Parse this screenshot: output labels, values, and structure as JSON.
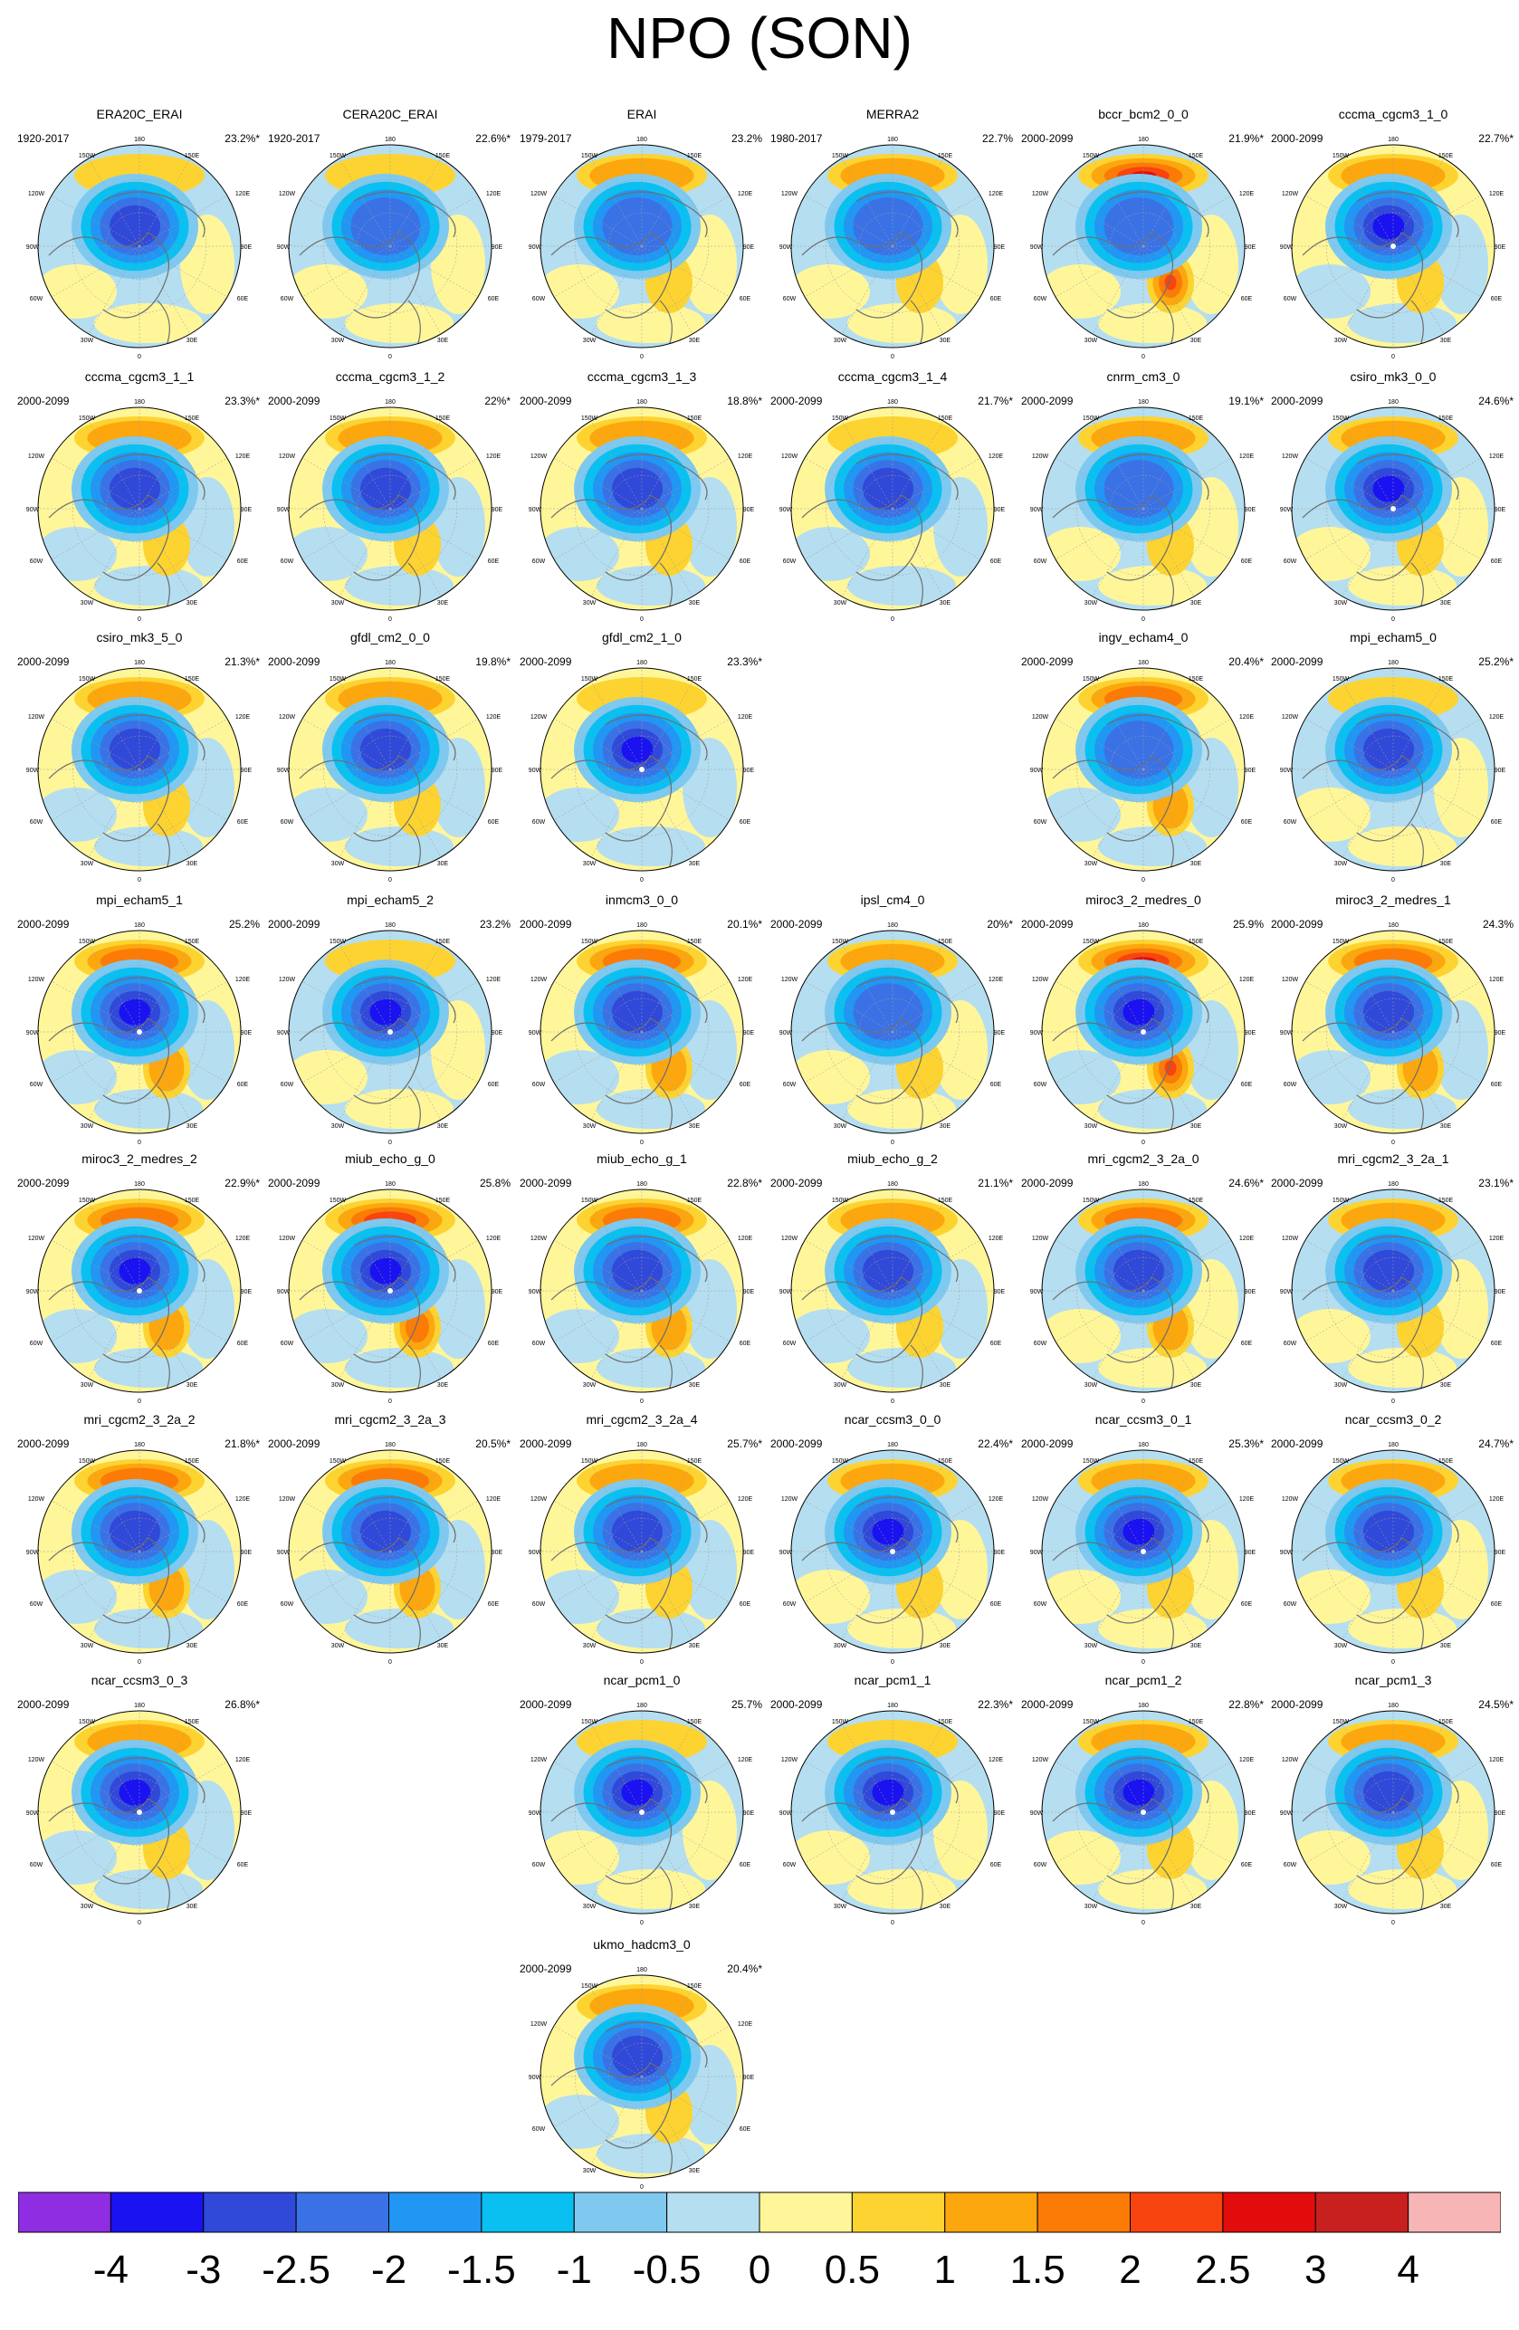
{
  "title": "NPO (SON)",
  "colorbar": {
    "colors": [
      "#8e2de2",
      "#1a12f0",
      "#3049d8",
      "#3a72e6",
      "#2196f3",
      "#0ac0f0",
      "#7fc9f0",
      "#b5def0",
      "#fff69a",
      "#fdd331",
      "#fca70e",
      "#fb7b06",
      "#f8440e",
      "#e30c0c",
      "#c8201e",
      "#f8b5b5"
    ],
    "labels": [
      "-4",
      "-3",
      "-2.5",
      "-2",
      "-1.5",
      "-1",
      "-0.5",
      "0",
      "0.5",
      "1",
      "1.5",
      "2",
      "2.5",
      "3",
      "4"
    ]
  },
  "map_labels": {
    "top": "180",
    "bottom": "0",
    "left_upper": "120W",
    "left_mid": "90W",
    "left_lower": "60W",
    "right_upper": "120E",
    "right_mid": "90E",
    "right_lower": "60E",
    "top_left": "150W",
    "top_right": "150E",
    "bottom_left": "30W",
    "bottom_right": "30E"
  },
  "panels": [
    {
      "title": "ERA20C_ERAI",
      "period": "1920-2017",
      "pct": "23.2%*",
      "low": -2.5,
      "high": 0.5,
      "bg": "lb"
    },
    {
      "title": "CERA20C_ERAI",
      "period": "1920-2017",
      "pct": "22.6%*",
      "low": -2,
      "high": 0.5,
      "bg": "lb"
    },
    {
      "title": "ERAI",
      "period": "1979-2017",
      "pct": "23.2%",
      "low": -2,
      "high": 1,
      "bg": "lb"
    },
    {
      "title": "MERRA2",
      "period": "1980-2017",
      "pct": "22.7%",
      "low": -2,
      "high": 1,
      "bg": "lb"
    },
    {
      "title": "bccr_bcm2_0_0",
      "period": "2000-2099",
      "pct": "21.9%*",
      "low": -2,
      "high": 2.5,
      "bg": "lb"
    },
    {
      "title": "cccma_cgcm3_1_0",
      "period": "2000-2099",
      "pct": "22.7%*",
      "low": -3,
      "high": 1,
      "bg": "ly"
    },
    {
      "title": "cccma_cgcm3_1_1",
      "period": "2000-2099",
      "pct": "23.3%*",
      "low": -2.5,
      "high": 1,
      "bg": "ly"
    },
    {
      "title": "cccma_cgcm3_1_2",
      "period": "2000-2099",
      "pct": "22%*",
      "low": -2.5,
      "high": 1,
      "bg": "ly"
    },
    {
      "title": "cccma_cgcm3_1_3",
      "period": "2000-2099",
      "pct": "18.8%*",
      "low": -2.5,
      "high": 1,
      "bg": "ly"
    },
    {
      "title": "cccma_cgcm3_1_4",
      "period": "2000-2099",
      "pct": "21.7%*",
      "low": -2.5,
      "high": 0.5,
      "bg": "ly"
    },
    {
      "title": "cnrm_cm3_0",
      "period": "2000-2099",
      "pct": "19.1%*",
      "low": -2,
      "high": 1,
      "bg": "lb"
    },
    {
      "title": "csiro_mk3_0_0",
      "period": "2000-2099",
      "pct": "24.6%*",
      "low": -3,
      "high": 1,
      "bg": "lb"
    },
    {
      "title": "csiro_mk3_5_0",
      "period": "2000-2099",
      "pct": "21.3%*",
      "low": -2.5,
      "high": 1,
      "bg": "ly"
    },
    {
      "title": "gfdl_cm2_0_0",
      "period": "2000-2099",
      "pct": "19.8%*",
      "low": -2.5,
      "high": 1,
      "bg": "ly"
    },
    {
      "title": "gfdl_cm2_1_0",
      "period": "2000-2099",
      "pct": "23.3%*",
      "low": -3,
      "high": 0.5,
      "bg": "ly"
    },
    {
      "title": "ingv_echam4_0",
      "period": "2000-2099",
      "pct": "20.4%*",
      "low": -2,
      "high": 1.5,
      "bg": "ly"
    },
    {
      "title": "mpi_echam5_0",
      "period": "2000-2099",
      "pct": "25.2%*",
      "low": -2.5,
      "high": 0.5,
      "bg": "lb"
    },
    {
      "title": "mpi_echam5_1",
      "period": "2000-2099",
      "pct": "25.2%",
      "low": -3,
      "high": 1.5,
      "bg": "ly"
    },
    {
      "title": "mpi_echam5_2",
      "period": "2000-2099",
      "pct": "23.2%",
      "low": -3,
      "high": 0.5,
      "bg": "lb"
    },
    {
      "title": "inmcm3_0_0",
      "period": "2000-2099",
      "pct": "20.1%*",
      "low": -2.5,
      "high": 1.5,
      "bg": "ly"
    },
    {
      "title": "ipsl_cm4_0",
      "period": "2000-2099",
      "pct": "20%*",
      "low": -2,
      "high": 1,
      "bg": "lb"
    },
    {
      "title": "miroc3_2_medres_0",
      "period": "2000-2099",
      "pct": "25.9%",
      "low": -3,
      "high": 2.5,
      "bg": "ly"
    },
    {
      "title": "miroc3_2_medres_1",
      "period": "2000-2099",
      "pct": "24.3%",
      "low": -2.5,
      "high": 1.5,
      "bg": "ly"
    },
    {
      "title": "miroc3_2_medres_2",
      "period": "2000-2099",
      "pct": "22.9%*",
      "low": -3,
      "high": 1.5,
      "bg": "ly"
    },
    {
      "title": "miub_echo_g_0",
      "period": "2000-2099",
      "pct": "25.8%",
      "low": -3,
      "high": 2,
      "bg": "ly"
    },
    {
      "title": "miub_echo_g_1",
      "period": "2000-2099",
      "pct": "22.8%*",
      "low": -2.5,
      "high": 1.5,
      "bg": "ly"
    },
    {
      "title": "miub_echo_g_2",
      "period": "2000-2099",
      "pct": "21.1%*",
      "low": -2.5,
      "high": 1,
      "bg": "ly"
    },
    {
      "title": "mri_cgcm2_3_2a_0",
      "period": "2000-2099",
      "pct": "24.6%*",
      "low": -2.5,
      "high": 1.5,
      "bg": "lb"
    },
    {
      "title": "mri_cgcm2_3_2a_1",
      "period": "2000-2099",
      "pct": "23.1%*",
      "low": -2.5,
      "high": 1,
      "bg": "lb"
    },
    {
      "title": "mri_cgcm2_3_2a_2",
      "period": "2000-2099",
      "pct": "21.8%*",
      "low": -2.5,
      "high": 1.5,
      "bg": "ly"
    },
    {
      "title": "mri_cgcm2_3_2a_3",
      "period": "2000-2099",
      "pct": "20.5%*",
      "low": -2.5,
      "high": 1.5,
      "bg": "ly"
    },
    {
      "title": "mri_cgcm2_3_2a_4",
      "period": "2000-2099",
      "pct": "25.7%*",
      "low": -2.5,
      "high": 1,
      "bg": "ly"
    },
    {
      "title": "ncar_ccsm3_0_0",
      "period": "2000-2099",
      "pct": "22.4%*",
      "low": -3,
      "high": 1,
      "bg": "lb"
    },
    {
      "title": "ncar_ccsm3_0_1",
      "period": "2000-2099",
      "pct": "25.3%*",
      "low": -3,
      "high": 1,
      "bg": "lb"
    },
    {
      "title": "ncar_ccsm3_0_2",
      "period": "2000-2099",
      "pct": "24.7%*",
      "low": -2.5,
      "high": 1,
      "bg": "lb"
    },
    {
      "title": "ncar_ccsm3_0_3",
      "period": "2000-2099",
      "pct": "26.8%*",
      "low": -3,
      "high": 1,
      "bg": "ly"
    },
    {
      "title": "ncar_pcm1_0",
      "period": "2000-2099",
      "pct": "25.7%",
      "low": -3,
      "high": 0.5,
      "bg": "lb"
    },
    {
      "title": "ncar_pcm1_1",
      "period": "2000-2099",
      "pct": "22.3%*",
      "low": -3,
      "high": 0.5,
      "bg": "lb"
    },
    {
      "title": "ncar_pcm1_2",
      "period": "2000-2099",
      "pct": "22.8%*",
      "low": -3,
      "high": 1,
      "bg": "lb"
    },
    {
      "title": "ncar_pcm1_3",
      "period": "2000-2099",
      "pct": "24.5%*",
      "low": -2.5,
      "high": 1,
      "bg": "lb"
    },
    {
      "title": "ukmo_hadcm3_0",
      "period": "2000-2099",
      "pct": "20.4%*",
      "low": -2.5,
      "high": 1,
      "bg": "ly"
    }
  ]
}
